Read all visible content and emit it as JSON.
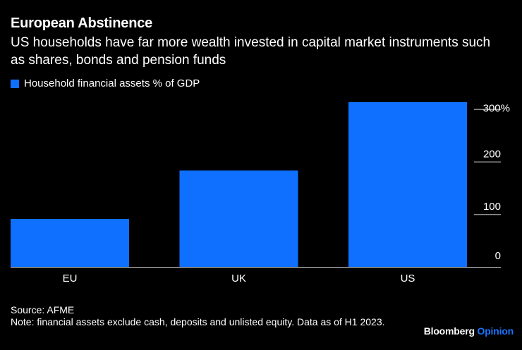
{
  "header": {
    "title": "European Abstinence",
    "subtitle": "US households have far more wealth invested in capital market instruments such as shares, bonds and pension funds"
  },
  "legend": {
    "label": "Household financial assets % of GDP"
  },
  "footer": {
    "source": "Source: AFME",
    "note": "Note: financial assets exclude cash, deposits and unlisted equity. Data as of H1 2023."
  },
  "brand": {
    "name": "Bloomberg",
    "suffix": "Opinion"
  },
  "colors": {
    "bar": "#0f70ff",
    "background": "#000000",
    "text": "#ffffff",
    "axis": "#bbbbbb"
  },
  "chart_data": {
    "type": "bar",
    "categories": [
      "EU",
      "UK",
      "US"
    ],
    "series": [
      {
        "name": "Household financial assets % of GDP",
        "values": [
          91,
          183,
          313
        ]
      }
    ],
    "ytick_labels": [
      "0",
      "100",
      "200",
      "300%"
    ],
    "yticks": [
      0,
      100,
      200,
      300
    ],
    "ylim": [
      0,
      313
    ],
    "grid": false,
    "axis_side": "right"
  }
}
